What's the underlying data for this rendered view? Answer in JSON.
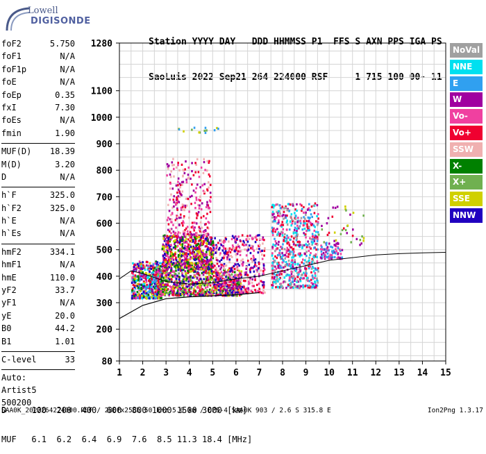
{
  "logo": {
    "line1": "Lowell",
    "line2": "DIGISONDE"
  },
  "header": {
    "row1": "Station YYYY DAY   DDD HHMMSS P1  FFS S AXN PPS IGA PS",
    "row2": "SaoLuis 2022 Sep21 264 224000 RSF     1 715 100 00- 11"
  },
  "params": [
    {
      "k": "foF2",
      "v": "5.750"
    },
    {
      "k": "foF1",
      "v": "N/A"
    },
    {
      "k": "foF1p",
      "v": "N/A"
    },
    {
      "k": "foE",
      "v": "N/A"
    },
    {
      "k": "foEp",
      "v": "0.35"
    },
    {
      "k": "fxI",
      "v": "7.30"
    },
    {
      "k": "foEs",
      "v": "N/A"
    },
    {
      "k": "fmin",
      "v": "1.90"
    }
  ],
  "params2": [
    {
      "k": "MUF(D)",
      "v": "18.39"
    },
    {
      "k": "M(D)",
      "v": "3.20"
    },
    {
      "k": "D",
      "v": "N/A"
    }
  ],
  "params3": [
    {
      "k": "h`F",
      "v": "325.0"
    },
    {
      "k": "h`F2",
      "v": "325.0"
    },
    {
      "k": "h`E",
      "v": "N/A"
    },
    {
      "k": "h`Es",
      "v": "N/A"
    }
  ],
  "params4": [
    {
      "k": "hmF2",
      "v": "334.1"
    },
    {
      "k": "hmF1",
      "v": "N/A"
    },
    {
      "k": "hmE",
      "v": "110.0"
    },
    {
      "k": "yF2",
      "v": "33.7"
    },
    {
      "k": "yF1",
      "v": "N/A"
    },
    {
      "k": "yE",
      "v": "20.0"
    },
    {
      "k": "B0",
      "v": "44.2"
    },
    {
      "k": "B1",
      "v": "1.01"
    }
  ],
  "params5": [
    {
      "k": "C-level",
      "v": "33"
    }
  ],
  "notes": [
    "Auto:",
    "Artist5",
    "500200"
  ],
  "legend": [
    {
      "label": "NoVal",
      "color": "#a0a0a0"
    },
    {
      "label": "NNE",
      "color": "#00e0f0"
    },
    {
      "label": "E",
      "color": "#30a0f0"
    },
    {
      "label": "W",
      "color": "#a000a0"
    },
    {
      "label": "Vo-",
      "color": "#f040a0"
    },
    {
      "label": "Vo+",
      "color": "#f00030"
    },
    {
      "label": "SSW",
      "color": "#f0b0b0"
    },
    {
      "label": "X-",
      "color": "#008000"
    },
    {
      "label": "X+",
      "color": "#70b050"
    },
    {
      "label": "SSE",
      "color": "#d0d000"
    },
    {
      "label": "NNW",
      "color": "#2000c0"
    }
  ],
  "muf_table": {
    "row1": "D     100  200  400  600  800 1000 1500 3000 [km]",
    "row2": "MUF   6.1  6.2  6.4  6.9  7.6  8.5 11.3 18.4 [MHz]"
  },
  "footer": {
    "left": "SAA0K_2022264224000.RSF / 280fx256h 50 kHz 5.0 km / DPS-4 SAA0K 903 / 2.6 S 315.8 E",
    "right": "Ion2Png 1.3.17"
  },
  "chart_data": {
    "type": "scatter",
    "xlim": [
      1,
      15
    ],
    "ylim": [
      80,
      1280
    ],
    "x_ticks": [
      1,
      2,
      3,
      4,
      5,
      6,
      7,
      8,
      9,
      10,
      11,
      12,
      13,
      14,
      15
    ],
    "y_ticks": [
      80,
      200,
      300,
      400,
      500,
      600,
      700,
      800,
      900,
      1000,
      1100,
      1280
    ],
    "grid": true,
    "clusters": [
      {
        "x": [
          1.5,
          2.8
        ],
        "y": [
          320,
          460
        ],
        "n": 500,
        "colors": [
          "W",
          "NNW",
          "Vo+",
          "X-",
          "NNE",
          "SSE",
          "Vo-",
          "E"
        ]
      },
      {
        "x": [
          2.8,
          5.0
        ],
        "y": [
          430,
          560
        ],
        "n": 700,
        "colors": [
          "W",
          "Vo-",
          "NNW",
          "Vo+",
          "X-",
          "SSE"
        ]
      },
      {
        "x": [
          2.6,
          6.2
        ],
        "y": [
          330,
          430
        ],
        "n": 800,
        "colors": [
          "X-",
          "X+",
          "Vo+",
          "W",
          "Vo-",
          "SSE",
          "NNW"
        ]
      },
      {
        "x": [
          3.0,
          4.9
        ],
        "y": [
          560,
          850
        ],
        "n": 260,
        "colors": [
          "W",
          "Vo-",
          "SSW",
          "Vo+"
        ]
      },
      {
        "x": [
          5.0,
          7.2
        ],
        "y": [
          340,
          560
        ],
        "n": 420,
        "colors": [
          "W",
          "Vo-",
          "Vo+",
          "NNW",
          "SSW"
        ]
      },
      {
        "x": [
          7.5,
          9.5
        ],
        "y": [
          360,
          680
        ],
        "n": 650,
        "colors": [
          "Vo-",
          "NNE",
          "E",
          "W",
          "Vo+",
          "NoVal"
        ]
      },
      {
        "x": [
          9.6,
          10.6
        ],
        "y": [
          470,
          530
        ],
        "n": 80,
        "colors": [
          "Vo-",
          "W",
          "E"
        ]
      },
      {
        "x": [
          9.5,
          11.5
        ],
        "y": [
          520,
          680
        ],
        "n": 40,
        "colors": [
          "Vo+",
          "X+",
          "SSE",
          "W"
        ]
      },
      {
        "x": [
          3.5,
          5.3
        ],
        "y": [
          945,
          965
        ],
        "n": 14,
        "colors": [
          "SSE",
          "X+",
          "E"
        ]
      }
    ],
    "trace_upper": {
      "x": [
        1,
        1.5,
        2,
        3,
        4,
        5,
        6,
        7,
        8,
        9,
        10,
        11,
        12,
        13,
        14,
        15
      ],
      "y": [
        390,
        420,
        410,
        380,
        370,
        375,
        390,
        400,
        420,
        440,
        460,
        470,
        480,
        485,
        488,
        490
      ]
    },
    "trace_lower": {
      "x": [
        1,
        2,
        3,
        4,
        5,
        6,
        7
      ],
      "y": [
        240,
        290,
        315,
        322,
        326,
        330,
        338
      ]
    }
  }
}
